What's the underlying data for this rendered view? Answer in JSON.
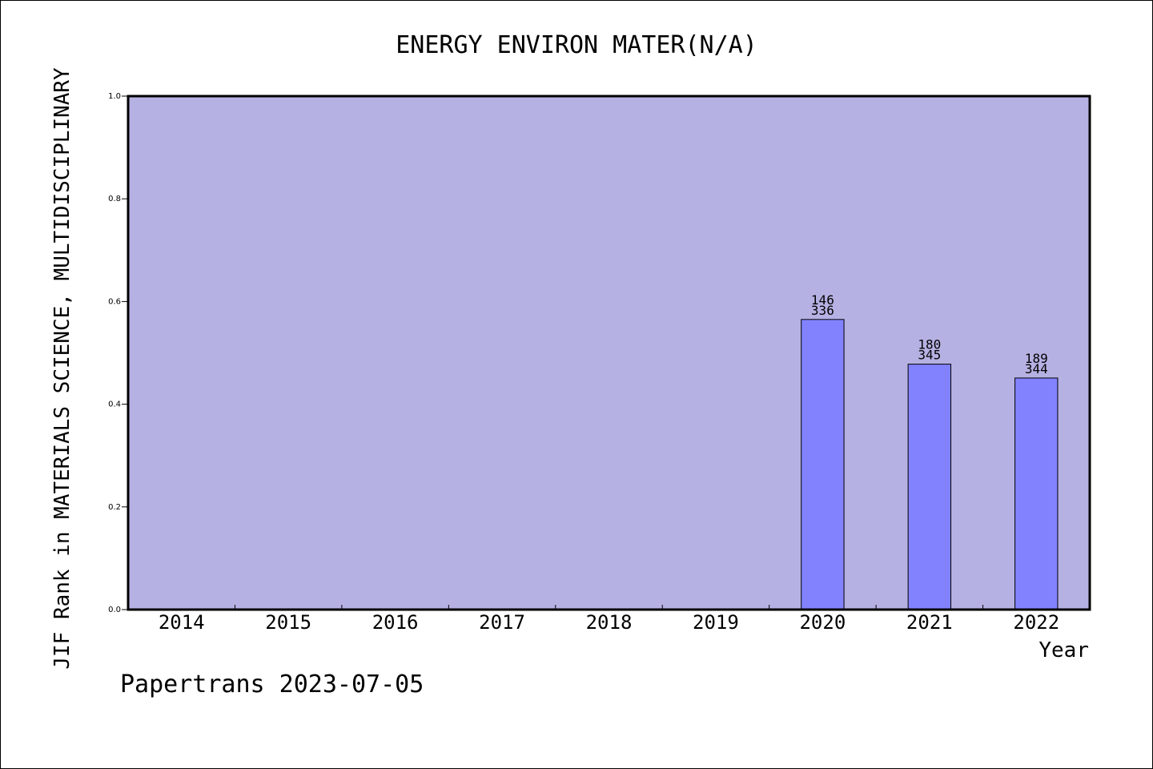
{
  "chart_data": {
    "type": "bar",
    "title": "ENERGY ENVIRON MATER(N/A)",
    "xlabel": "Year",
    "ylabel": "JIF Rank in MATERIALS SCIENCE, MULTIDISCIPLINARY",
    "categories": [
      "2014",
      "2015",
      "2016",
      "2017",
      "2018",
      "2019",
      "2020",
      "2021",
      "2022"
    ],
    "values": [
      null,
      null,
      null,
      null,
      null,
      null,
      0.565,
      0.478,
      0.451
    ],
    "bar_labels": [
      null,
      null,
      null,
      null,
      null,
      null,
      {
        "rank": "146",
        "total": "336"
      },
      {
        "rank": "180",
        "total": "345"
      },
      {
        "rank": "189",
        "total": "344"
      }
    ],
    "ylim": [
      0,
      1.0
    ],
    "yticks": [
      "0.0",
      "0.2",
      "0.4",
      "0.6",
      "0.8",
      "1.0"
    ],
    "grid": false,
    "colors": {
      "plot_background": "#b6b1e3",
      "bar_fill": "#8282ff",
      "bar_edge": "#000000"
    }
  },
  "footer": "Papertrans 2023-07-05"
}
